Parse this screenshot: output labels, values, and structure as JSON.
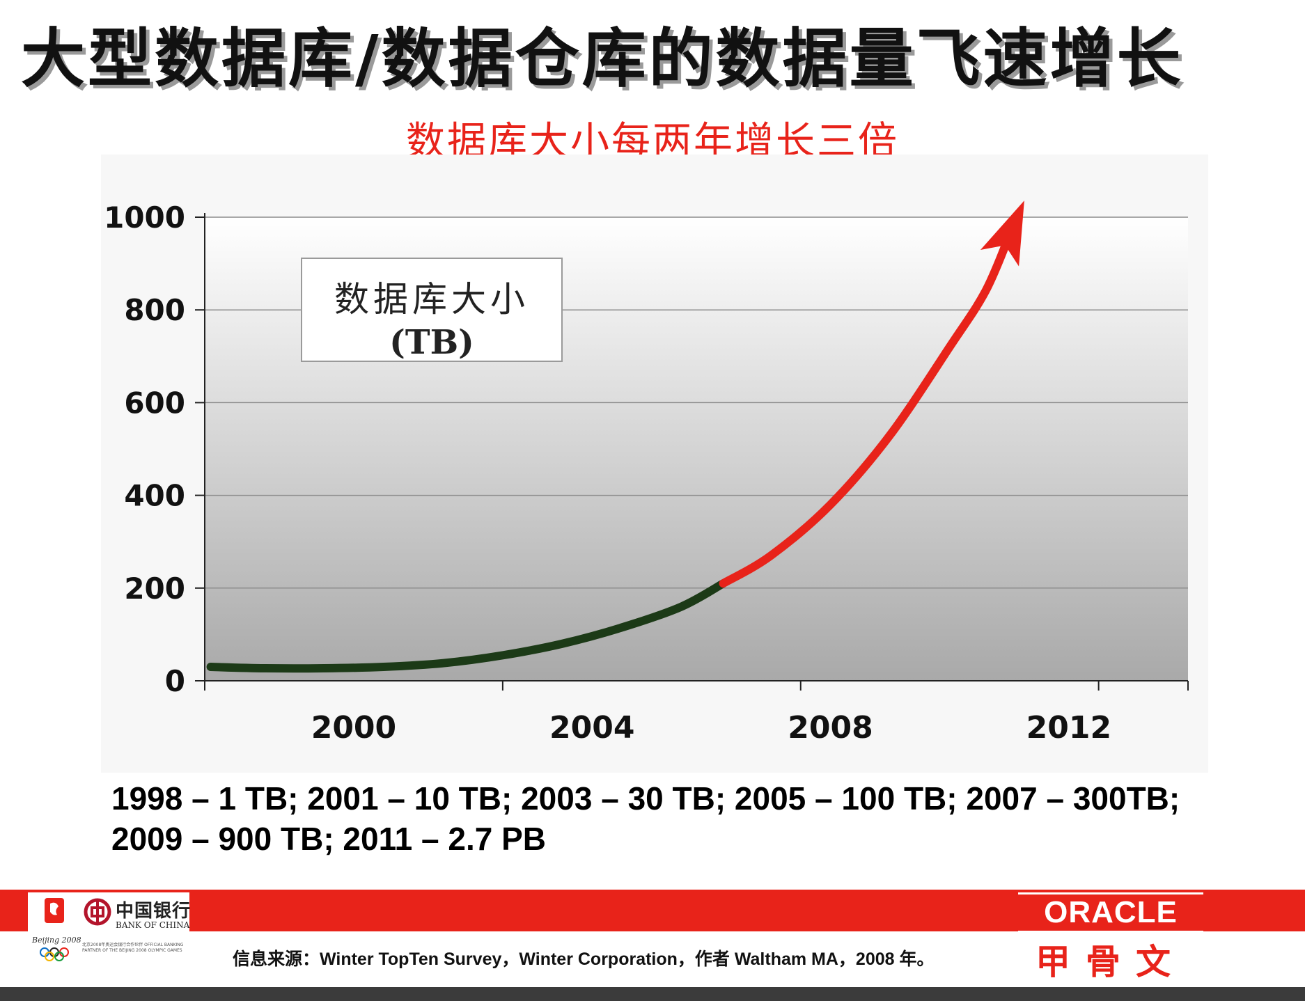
{
  "slide": {
    "title": "大型数据库/数据仓库的数据量飞速增长",
    "subtitle": "数据库大小每两年增长三倍",
    "data_note_line1": "1998 – 1 TB;  2001 – 10 TB;  2003 – 30 TB;  2005 – 100 TB; 2007 – 300TB;",
    "data_note_line2": "2009 – 900 TB; 2011 – 2.7 PB",
    "source_note": "信息来源：Winter TopTen Survey，Winter Corporation，作者 Waltham MA，2008 年。"
  },
  "footer": {
    "partner_caption": "Beijing 2008",
    "bank_name_cn": "中国银行",
    "bank_name_en": "BANK OF CHINA",
    "bank_tagline": "北京2008年奥运会银行合作伙伴 OFFICIAL BANKING PARTNER OF THE BEIJING 2008 OLYMPIC GAMES",
    "oracle_en": "ORACLE",
    "oracle_cn": "甲骨文"
  },
  "colors": {
    "accent_red": "#e8231a",
    "curve_green": "#1c3a17",
    "curve_red": "#e8231a"
  },
  "chart_data": {
    "type": "line",
    "legend_line1": "数据库大小",
    "legend_line2": "(TB)",
    "xlim": [
      1997.5,
      2014
    ],
    "ylim": [
      0,
      1000
    ],
    "yticks": [
      0,
      200,
      400,
      600,
      800,
      1000
    ],
    "xtick_positions": [
      1997.5,
      2002.5,
      2007.5,
      2012.5
    ],
    "xtick_labels": [
      "2000",
      "2004",
      "2008",
      "2012"
    ],
    "xlabel_positions": [
      2000,
      2004,
      2008,
      2012
    ],
    "grid": true,
    "series": [
      {
        "color": "#1c3a17",
        "x": [
          1997.6,
          1998.5,
          1999.5,
          2000.5,
          2001.5,
          2002.5,
          2003.5,
          2004.5,
          2005.5,
          2006.2
        ],
        "y": [
          30,
          27,
          27,
          30,
          38,
          55,
          80,
          115,
          160,
          210
        ]
      },
      {
        "color": "#e8231a",
        "x": [
          2006.2,
          2007,
          2008,
          2009,
          2010,
          2010.6,
          2011.0
        ],
        "y": [
          210,
          270,
          380,
          530,
          720,
          840,
          960
        ]
      }
    ],
    "arrow_end": true
  }
}
